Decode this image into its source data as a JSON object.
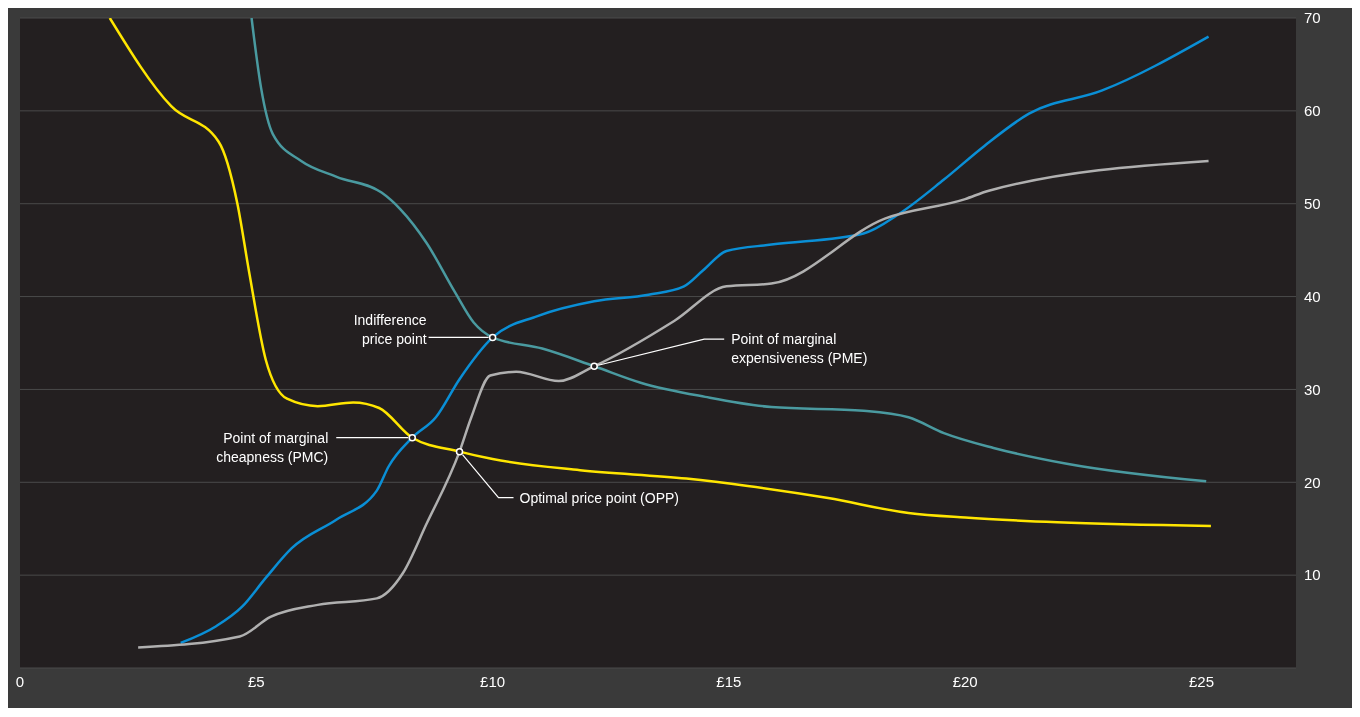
{
  "chart_data": {
    "type": "line",
    "xlim": [
      0,
      27
    ],
    "xticks": [
      {
        "value": 0,
        "label": "0"
      },
      {
        "value": 5,
        "label": "£5"
      },
      {
        "value": 10,
        "label": "£10"
      },
      {
        "value": 15,
        "label": "£15"
      },
      {
        "value": 20,
        "label": "£20"
      },
      {
        "value": 25,
        "label": "£25"
      }
    ],
    "ylim": [
      0,
      70
    ],
    "yticks": [
      10,
      20,
      30,
      40,
      50,
      60,
      70
    ],
    "grid": "y",
    "marker": "none",
    "line_style": "solid",
    "series": [
      {
        "color": "#ffe600",
        "x": [
          1.9,
          3.2,
          4.2,
          4.6,
          4.85,
          5.2,
          5.65,
          6.3,
          7.05,
          7.6,
          8.3,
          9.3,
          10,
          11.85,
          14.1,
          15.4,
          17.1,
          18.8,
          20,
          21.95,
          25.2
        ],
        "values": [
          70,
          60.5,
          56.7,
          50,
          42.6,
          33.2,
          29,
          28.2,
          28.6,
          28,
          24.8,
          23.3,
          22.5,
          21.3,
          20.4,
          19.6,
          18.3,
          16.7,
          16.2,
          15.7,
          15.3
        ]
      },
      {
        "color": "#4a9aa0",
        "x": [
          4.9,
          5.1,
          5.35,
          5.95,
          6.7,
          7.65,
          8.05,
          8.6,
          9.2,
          9.6,
          10,
          11.05,
          12.15,
          13.15,
          14.5,
          15.9,
          17.85,
          18.8,
          19.55,
          20.6,
          22.15,
          25.1
        ],
        "values": [
          70,
          62.5,
          57.5,
          54.6,
          52.9,
          51.2,
          49.4,
          45.8,
          40.5,
          37.2,
          35.6,
          34.4,
          32.5,
          30.7,
          29.2,
          28.1,
          27.7,
          27,
          25.3,
          23.7,
          22,
          20.1
        ]
      },
      {
        "color": "#0a8fd6",
        "x": [
          3.4,
          4.15,
          4.7,
          5.2,
          5.75,
          6.7,
          7.55,
          7.8,
          8.3,
          8.8,
          9.3,
          10,
          10.95,
          12.15,
          13.3,
          14.05,
          14.45,
          14.95,
          15.9,
          17.85,
          18.6,
          19.55,
          20.4,
          21.35,
          22.9,
          25.15
        ],
        "values": [
          2.7,
          4.5,
          6.6,
          9.7,
          12.9,
          16,
          19.1,
          21.7,
          24.8,
          27,
          31.1,
          35.6,
          37.9,
          39.5,
          40.2,
          41.1,
          42.8,
          44.9,
          45.6,
          46.8,
          48.9,
          52.6,
          56.2,
          59.7,
          62.2,
          68
        ]
      },
      {
        "color": "#b0b0b0",
        "x": [
          2.5,
          4.65,
          5.3,
          6.3,
          7.55,
          8.1,
          8.6,
          9.3,
          9.55,
          9.95,
          10.5,
          11.4,
          12.15,
          13.85,
          14.95,
          15.9,
          18.3,
          20,
          20.5,
          25.15
        ],
        "values": [
          2.2,
          3.4,
          5.5,
          6.8,
          7.5,
          10.2,
          15.5,
          23.3,
          27,
          31.5,
          31.9,
          30.9,
          32.5,
          37.4,
          41.1,
          41.4,
          48.4,
          50.5,
          51.4,
          54.6
        ]
      }
    ],
    "annotations": [
      {
        "text": "Point of marginal\ncheapness (PMC)",
        "x": 8.3,
        "y": 24.8
      },
      {
        "text": "Optimal price point (OPP)",
        "x": 9.3,
        "y": 23.3
      },
      {
        "text": "Indifference\nprice point",
        "x": 10,
        "y": 35.6
      },
      {
        "text": "Point of marginal\nexpensiveness (PME)",
        "x": 12.15,
        "y": 32.5
      }
    ]
  }
}
